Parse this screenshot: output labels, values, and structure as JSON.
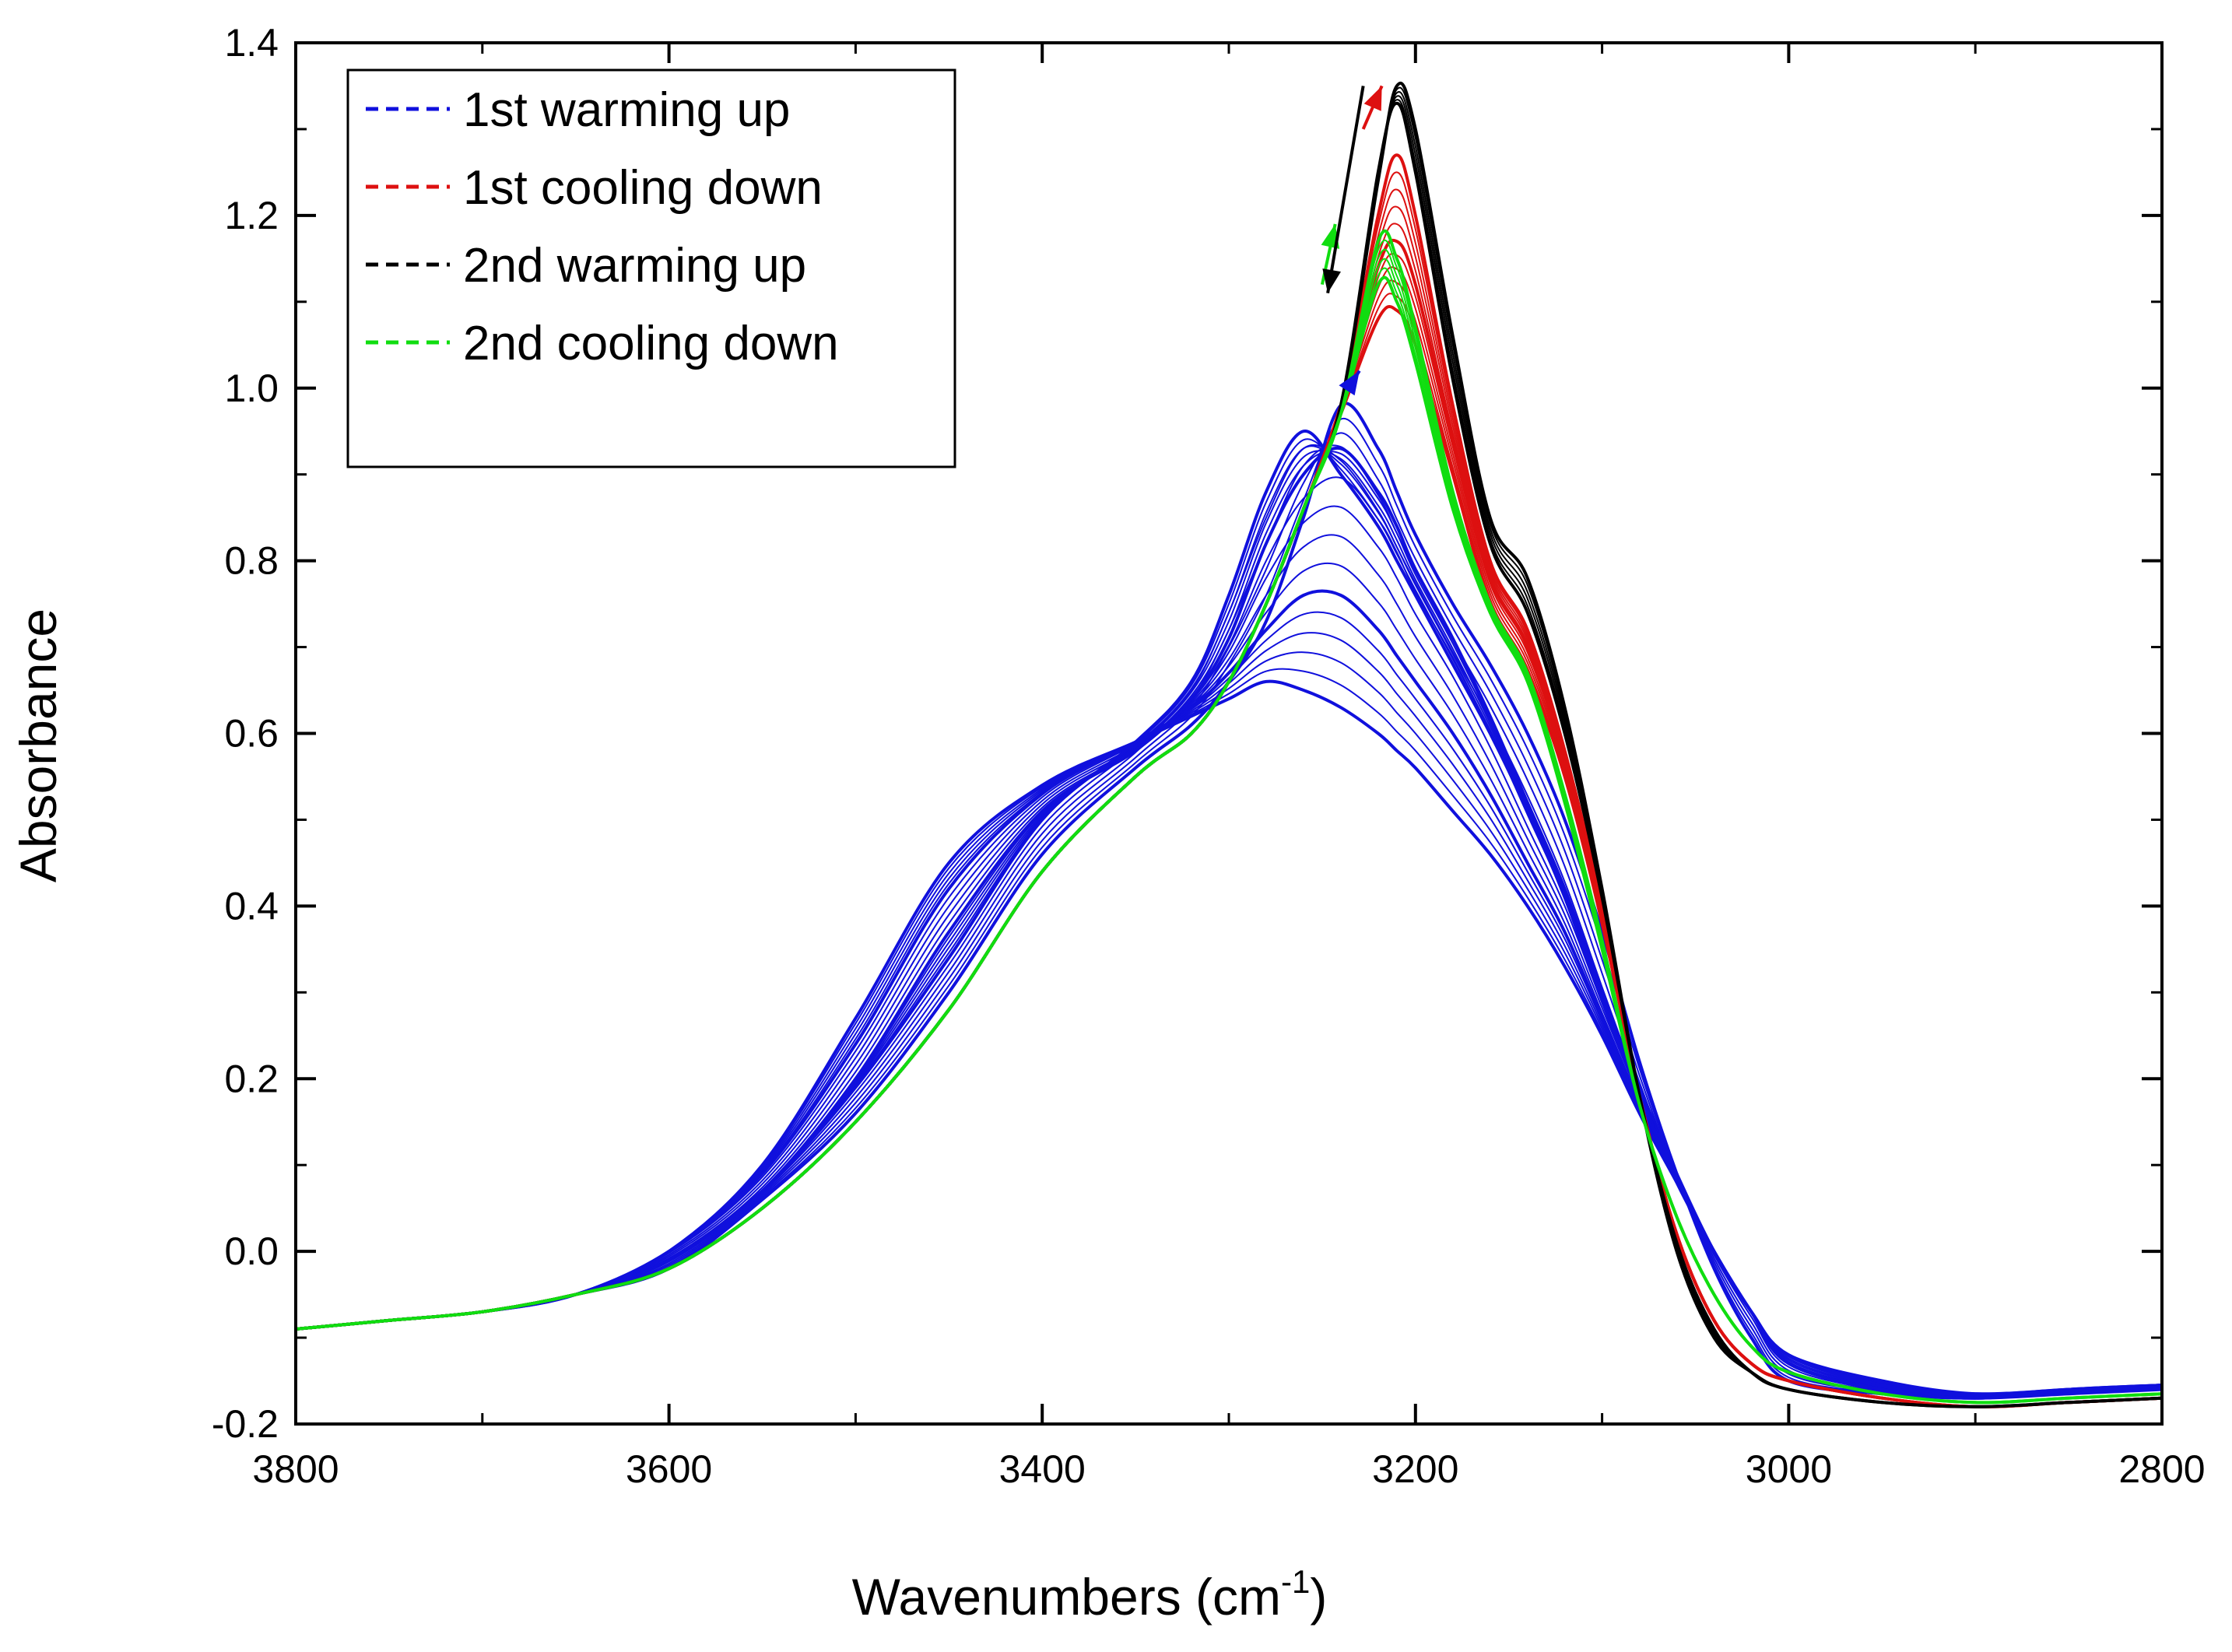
{
  "chart_data": {
    "type": "line",
    "title": "",
    "xlabel": "Wavenumbers (cm",
    "xlabel_sup": "-1",
    "xlabel_close": ")",
    "ylabel": "Absorbance",
    "xlim": [
      3800,
      2800
    ],
    "ylim": [
      -0.2,
      1.4
    ],
    "x_ticks": [
      3800,
      3600,
      3400,
      3200,
      3000,
      2800
    ],
    "x_tick_labels": [
      "3800",
      "3600",
      "3400",
      "3200",
      "3000",
      "2800"
    ],
    "y_ticks": [
      -0.2,
      0.0,
      0.2,
      0.4,
      0.6,
      0.8,
      1.0,
      1.2,
      1.4
    ],
    "y_tick_labels": [
      "-0.2",
      "0.0",
      "0.2",
      "0.4",
      "0.6",
      "0.8",
      "1.0",
      "1.2",
      "1.4"
    ],
    "legend_position": "top-left",
    "x": [
      3800,
      3750,
      3700,
      3650,
      3600,
      3550,
      3500,
      3450,
      3400,
      3350,
      3320,
      3300,
      3280,
      3260,
      3240,
      3220,
      3210,
      3200,
      3180,
      3160,
      3140,
      3120,
      3100,
      3080,
      3060,
      3040,
      3020,
      3000,
      2950,
      2900,
      2850,
      2800
    ],
    "series": [
      {
        "name": "1st warming up",
        "color": "#1010dd",
        "dash": "dashed",
        "curves": [
          [
            -0.09,
            -0.08,
            -0.07,
            -0.05,
            0.0,
            0.1,
            0.27,
            0.45,
            0.54,
            0.59,
            0.62,
            0.64,
            0.66,
            0.65,
            0.63,
            0.6,
            0.58,
            0.56,
            0.51,
            0.46,
            0.4,
            0.33,
            0.25,
            0.16,
            0.08,
            0.0,
            -0.07,
            -0.12,
            -0.15,
            -0.165,
            -0.16,
            -0.155
          ],
          [
            -0.09,
            -0.08,
            -0.07,
            -0.05,
            0.0,
            0.09,
            0.24,
            0.42,
            0.53,
            0.59,
            0.63,
            0.67,
            0.72,
            0.76,
            0.76,
            0.72,
            0.69,
            0.66,
            0.6,
            0.53,
            0.45,
            0.37,
            0.27,
            0.17,
            0.08,
            0.0,
            -0.07,
            -0.12,
            -0.155,
            -0.165,
            -0.16,
            -0.155
          ],
          [
            -0.09,
            -0.08,
            -0.07,
            -0.05,
            -0.01,
            0.07,
            0.2,
            0.37,
            0.51,
            0.58,
            0.64,
            0.71,
            0.82,
            0.9,
            0.93,
            0.88,
            0.84,
            0.79,
            0.71,
            0.62,
            0.52,
            0.42,
            0.3,
            0.19,
            0.09,
            0.0,
            -0.07,
            -0.13,
            -0.16,
            -0.17,
            -0.16,
            -0.155
          ],
          [
            -0.09,
            -0.08,
            -0.07,
            -0.05,
            -0.01,
            0.07,
            0.19,
            0.34,
            0.5,
            0.59,
            0.66,
            0.76,
            0.88,
            0.95,
            0.9,
            0.84,
            0.8,
            0.76,
            0.68,
            0.6,
            0.51,
            0.41,
            0.29,
            0.18,
            0.08,
            0.0,
            -0.07,
            -0.13,
            -0.16,
            -0.17,
            -0.16,
            -0.155
          ],
          [
            -0.09,
            -0.08,
            -0.07,
            -0.05,
            -0.02,
            0.06,
            0.16,
            0.3,
            0.46,
            0.56,
            0.61,
            0.66,
            0.73,
            0.85,
            0.98,
            0.93,
            0.88,
            0.83,
            0.75,
            0.68,
            0.6,
            0.5,
            0.37,
            0.22,
            0.09,
            -0.02,
            -0.1,
            -0.15,
            -0.165,
            -0.17,
            -0.165,
            -0.16
          ]
        ]
      },
      {
        "name": "1st cooling down",
        "color": "#dd1010",
        "dash": "dashed",
        "curves": [
          [
            -0.09,
            -0.08,
            -0.07,
            -0.05,
            -0.02,
            0.05,
            0.15,
            0.28,
            0.44,
            0.55,
            0.6,
            0.66,
            0.75,
            0.86,
            0.97,
            1.08,
            1.09,
            1.05,
            0.9,
            0.75,
            0.67,
            0.55,
            0.38,
            0.18,
            0.02,
            -0.08,
            -0.13,
            -0.15,
            -0.17,
            -0.18,
            -0.175,
            -0.17
          ],
          [
            -0.09,
            -0.08,
            -0.07,
            -0.05,
            -0.02,
            0.05,
            0.15,
            0.28,
            0.44,
            0.55,
            0.6,
            0.66,
            0.75,
            0.86,
            0.98,
            1.14,
            1.17,
            1.12,
            0.94,
            0.78,
            0.7,
            0.57,
            0.39,
            0.18,
            0.02,
            -0.08,
            -0.13,
            -0.15,
            -0.17,
            -0.18,
            -0.175,
            -0.17
          ],
          [
            -0.09,
            -0.08,
            -0.07,
            -0.05,
            -0.02,
            0.05,
            0.15,
            0.28,
            0.44,
            0.55,
            0.6,
            0.66,
            0.75,
            0.86,
            0.98,
            1.2,
            1.27,
            1.2,
            0.98,
            0.8,
            0.72,
            0.58,
            0.4,
            0.18,
            0.02,
            -0.08,
            -0.13,
            -0.15,
            -0.17,
            -0.18,
            -0.175,
            -0.17
          ]
        ]
      },
      {
        "name": "2nd warming up",
        "color": "#000000",
        "dash": "dashed",
        "curves": [
          [
            -0.09,
            -0.08,
            -0.07,
            -0.05,
            -0.02,
            0.05,
            0.15,
            0.28,
            0.44,
            0.55,
            0.6,
            0.66,
            0.75,
            0.86,
            0.98,
            1.25,
            1.33,
            1.25,
            1.01,
            0.82,
            0.74,
            0.6,
            0.41,
            0.18,
            0.01,
            -0.09,
            -0.14,
            -0.16,
            -0.175,
            -0.18,
            -0.175,
            -0.17
          ],
          [
            -0.09,
            -0.08,
            -0.07,
            -0.05,
            -0.02,
            0.05,
            0.15,
            0.28,
            0.44,
            0.55,
            0.6,
            0.66,
            0.75,
            0.86,
            0.98,
            1.24,
            1.35,
            1.3,
            1.06,
            0.85,
            0.78,
            0.63,
            0.42,
            0.18,
            0.0,
            -0.1,
            -0.14,
            -0.16,
            -0.175,
            -0.18,
            -0.175,
            -0.17
          ]
        ]
      },
      {
        "name": "2nd cooling down",
        "color": "#10dd10",
        "dash": "dashed",
        "curves": [
          [
            -0.09,
            -0.08,
            -0.07,
            -0.05,
            -0.02,
            0.05,
            0.15,
            0.28,
            0.44,
            0.55,
            0.6,
            0.66,
            0.75,
            0.86,
            0.97,
            1.12,
            1.1,
            1.03,
            0.86,
            0.74,
            0.66,
            0.52,
            0.35,
            0.17,
            0.04,
            -0.05,
            -0.11,
            -0.14,
            -0.165,
            -0.175,
            -0.17,
            -0.165
          ],
          [
            -0.09,
            -0.08,
            -0.07,
            -0.05,
            -0.02,
            0.05,
            0.15,
            0.28,
            0.44,
            0.55,
            0.6,
            0.66,
            0.75,
            0.86,
            0.97,
            1.17,
            1.15,
            1.07,
            0.88,
            0.75,
            0.67,
            0.53,
            0.36,
            0.17,
            0.04,
            -0.05,
            -0.11,
            -0.14,
            -0.165,
            -0.175,
            -0.17,
            -0.165
          ]
        ]
      }
    ]
  }
}
